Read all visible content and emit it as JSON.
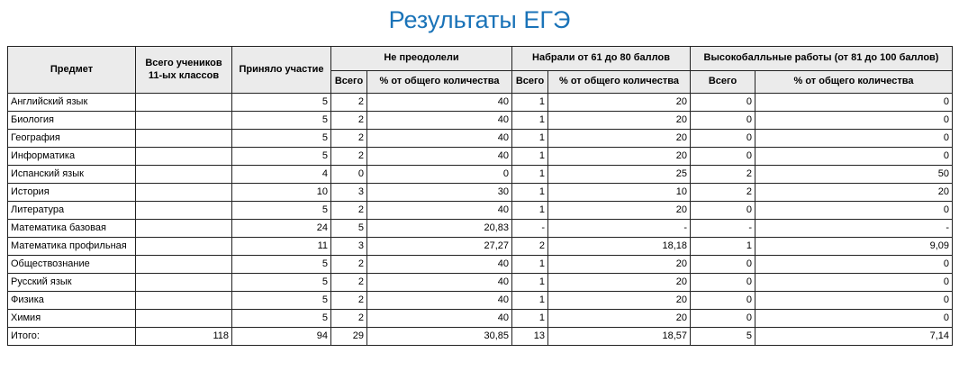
{
  "page": {
    "title": "Результаты ЕГЭ"
  },
  "colors": {
    "title_blue": "#1a73b8",
    "header_bg": "#ebebeb",
    "border": "#222222"
  },
  "table": {
    "headers": {
      "subject": "Предмет",
      "total_students": "Всего учеников 11-ых классов",
      "participated": "Приняло участие",
      "groups": [
        {
          "label": "Не преодолели"
        },
        {
          "label": "Набрали от 61 до 80 баллов"
        },
        {
          "label": "Высокобалльные работы (от 81 до 100 баллов)"
        }
      ],
      "sub_total": "Всего",
      "sub_percent": "% от общего количества"
    },
    "rows": [
      {
        "subject": "Английский язык",
        "total_students": "",
        "participated": "5",
        "np_total": "2",
        "np_percent": "40",
        "mid_total": "1",
        "mid_percent": "20",
        "high_total": "0",
        "high_percent": "0"
      },
      {
        "subject": "Биология",
        "total_students": "",
        "participated": "5",
        "np_total": "2",
        "np_percent": "40",
        "mid_total": "1",
        "mid_percent": "20",
        "high_total": "0",
        "high_percent": "0"
      },
      {
        "subject": "География",
        "total_students": "",
        "participated": "5",
        "np_total": "2",
        "np_percent": "40",
        "mid_total": "1",
        "mid_percent": "20",
        "high_total": "0",
        "high_percent": "0"
      },
      {
        "subject": "Информатика",
        "total_students": "",
        "participated": "5",
        "np_total": "2",
        "np_percent": "40",
        "mid_total": "1",
        "mid_percent": "20",
        "high_total": "0",
        "high_percent": "0"
      },
      {
        "subject": "Испанский язык",
        "total_students": "",
        "participated": "4",
        "np_total": "0",
        "np_percent": "0",
        "mid_total": "1",
        "mid_percent": "25",
        "high_total": "2",
        "high_percent": "50"
      },
      {
        "subject": "История",
        "total_students": "",
        "participated": "10",
        "np_total": "3",
        "np_percent": "30",
        "mid_total": "1",
        "mid_percent": "10",
        "high_total": "2",
        "high_percent": "20"
      },
      {
        "subject": "Литература",
        "total_students": "",
        "participated": "5",
        "np_total": "2",
        "np_percent": "40",
        "mid_total": "1",
        "mid_percent": "20",
        "high_total": "0",
        "high_percent": "0"
      },
      {
        "subject": "Математика базовая",
        "total_students": "",
        "participated": "24",
        "np_total": "5",
        "np_percent": "20,83",
        "mid_total": "-",
        "mid_percent": "-",
        "high_total": "-",
        "high_percent": "-"
      },
      {
        "subject": "Математика профильная",
        "total_students": "",
        "participated": "11",
        "np_total": "3",
        "np_percent": "27,27",
        "mid_total": "2",
        "mid_percent": "18,18",
        "high_total": "1",
        "high_percent": "9,09"
      },
      {
        "subject": "Обществознание",
        "total_students": "",
        "participated": "5",
        "np_total": "2",
        "np_percent": "40",
        "mid_total": "1",
        "mid_percent": "20",
        "high_total": "0",
        "high_percent": "0"
      },
      {
        "subject": "Русский язык",
        "total_students": "",
        "participated": "5",
        "np_total": "2",
        "np_percent": "40",
        "mid_total": "1",
        "mid_percent": "20",
        "high_total": "0",
        "high_percent": "0"
      },
      {
        "subject": "Физика",
        "total_students": "",
        "participated": "5",
        "np_total": "2",
        "np_percent": "40",
        "mid_total": "1",
        "mid_percent": "20",
        "high_total": "0",
        "high_percent": "0"
      },
      {
        "subject": "Химия",
        "total_students": "",
        "participated": "5",
        "np_total": "2",
        "np_percent": "40",
        "mid_total": "1",
        "mid_percent": "20",
        "high_total": "0",
        "high_percent": "0"
      }
    ],
    "total_row": {
      "subject": "Итого:",
      "total_students": "118",
      "participated": "94",
      "np_total": "29",
      "np_percent": "30,85",
      "mid_total": "13",
      "mid_percent": "18,57",
      "high_total": "5",
      "high_percent": "7,14"
    }
  }
}
